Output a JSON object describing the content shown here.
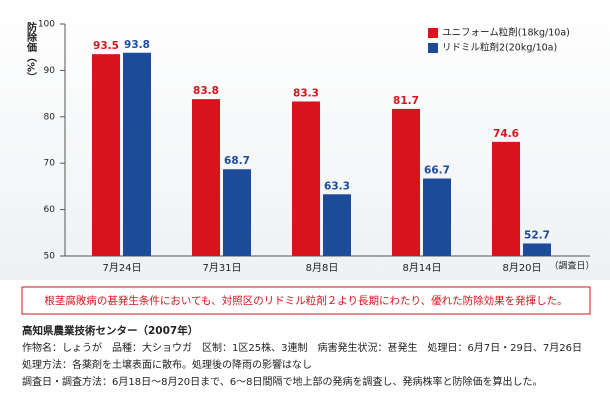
{
  "chart_data": {
    "type": "bar",
    "y_label": "防除価（%）",
    "x_label": "（調査日）",
    "categories": [
      "7月24日",
      "7月31日",
      "8月8日",
      "8月14日",
      "8月20日"
    ],
    "series": [
      {
        "name": "ユニフォーム粒剤(18kg/10a)",
        "color": "#d7141d",
        "values": [
          93.5,
          83.8,
          83.3,
          81.7,
          74.6
        ]
      },
      {
        "name": "リドミル粒剤2(20kg/10a)",
        "color": "#1d4a9a",
        "values": [
          93.8,
          68.7,
          63.3,
          66.7,
          52.7
        ]
      }
    ],
    "ylim": [
      50,
      100
    ],
    "yticks": [
      50,
      60,
      70,
      80,
      90,
      100
    ],
    "grid": false,
    "legend": "top-right",
    "annotation": "根茎腐敗病の甚発生条件においても、対照区のリドミル粒剤２より長期にわたり、優れた防除効果を発揮した。"
  },
  "footer": {
    "source": "高知県農業技術センター（2007年）",
    "lines": [
      "作物名：しょうが　品種：大ショウガ　区制：1区25株、3連制　病害発生状況：甚発生　処理日：6月7日・29日、7月26日",
      "処理方法：各薬剤を土壌表面に散布。処理後の降雨の影響はなし",
      "調査日・調査方法：6月18日〜8月20日まで、6〜8日間隔で地上部の発病を調査し、発病株率と防除価を算出した。"
    ]
  }
}
